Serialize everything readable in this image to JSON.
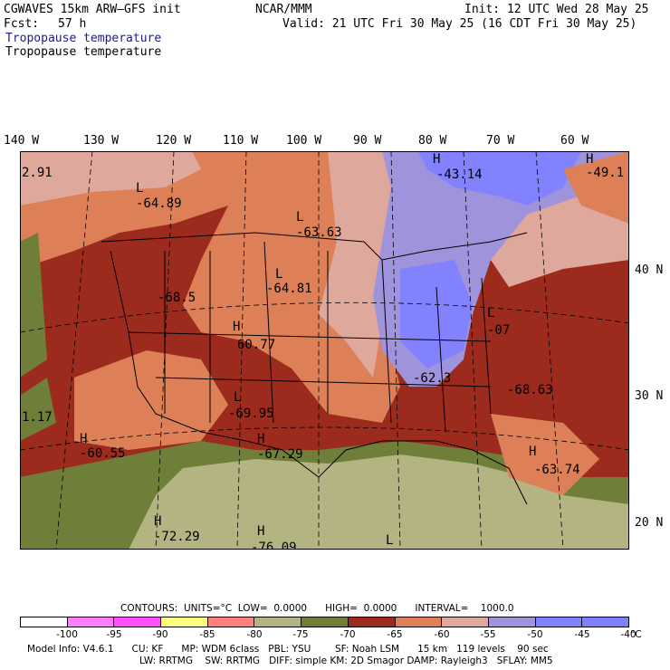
{
  "header": {
    "model": "CGWAVES 15km ARW–GFS init",
    "org": "NCAR/MMM",
    "init": "Init: 12 UTC Wed 28 May 25",
    "fcst_label": "Fcst:",
    "fcst_value": "57 h",
    "valid": "Valid: 21 UTC Fri 30 May 25 (16 CDT Fri 30 May 25)",
    "field_blue": "Tropopause temperature",
    "field_black": "Tropopause temperature"
  },
  "longitudes": [
    "140 W",
    "130 W",
    "120 W",
    "110 W",
    "100 W",
    "90 W",
    "80 W",
    "70 W",
    "60 W"
  ],
  "latitudes": [
    "40 N",
    "30 N",
    "20 N"
  ],
  "map": {
    "labels": [
      {
        "type": "L",
        "value": "-64.89"
      },
      {
        "type": "L",
        "value": "-63.63"
      },
      {
        "type": "L",
        "value": "-64.81"
      },
      {
        "type": "",
        "value": "-68.5"
      },
      {
        "type": "H",
        "value": "60.77"
      },
      {
        "type": "L",
        "value": "-69.95"
      },
      {
        "type": "H",
        "value": "-60.55"
      },
      {
        "type": "H",
        "value": "-67.29"
      },
      {
        "type": "H",
        "value": "-43.14"
      },
      {
        "type": "H",
        "value": "-49.1"
      },
      {
        "type": "",
        "value": "2.91"
      },
      {
        "type": "L",
        "value": "-07"
      },
      {
        "type": "",
        "value": "-62.3"
      },
      {
        "type": "",
        "value": "-68.63"
      },
      {
        "type": "H",
        "value": "-63.74"
      },
      {
        "type": "",
        "value": "1.17"
      },
      {
        "type": "H",
        "value": "-72.29"
      },
      {
        "type": "H",
        "value": "-76.09"
      },
      {
        "type": "L",
        "value": ""
      }
    ]
  },
  "contours": {
    "text": "CONTOURS:  UNITS=°C  LOW=  0.0000      HIGH=  0.0000      INTERVAL=    1000.0"
  },
  "colorbar": {
    "colors": [
      "#ffffff",
      "#ff7dff",
      "#ff50ff",
      "#ffff7f",
      "#ff7f7f",
      "#b4b482",
      "#6f7f3a",
      "#9c2a1d",
      "#dd8058",
      "#dfa89c",
      "#9f93dc",
      "#8282ff",
      "#7f7fff"
    ],
    "labels": [
      "-100",
      "-95",
      "-90",
      "-85",
      "-80",
      "-75",
      "-70",
      "-65",
      "-60",
      "-55",
      "-50",
      "-45",
      "-40",
      "°C"
    ]
  },
  "footer": {
    "line1": "Model Info: V4.6.1      CU: KF      MP: WDM 6class   PBL: YSU        SF: Noah LSM      15 km   119 levels    90 sec",
    "line2": "LW: RRTMG    SW: RRTMG   DIFF: simple KM: 2D Smagor DAMP: Rayleigh3   SFLAY: MM5"
  }
}
